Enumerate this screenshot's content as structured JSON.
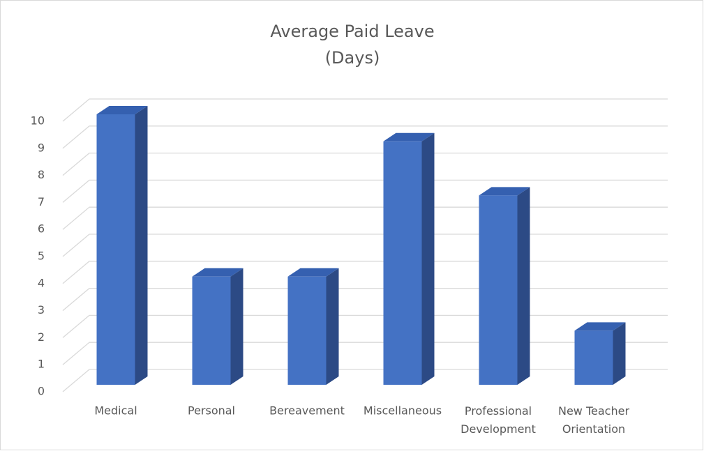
{
  "chart_data": {
    "type": "bar3d",
    "title": "Average Paid Leave",
    "subtitle": "(Days)",
    "categories": [
      "Medical",
      "Personal",
      "Bereavement",
      "Miscellaneous",
      "Professional Development",
      "New Teacher Orientation"
    ],
    "values": [
      10,
      4,
      4,
      9,
      7,
      2
    ],
    "color": "#4472c4",
    "ylim": [
      0,
      10
    ],
    "yticks": [
      0,
      1,
      2,
      3,
      4,
      5,
      6,
      7,
      8,
      9,
      10
    ],
    "grid": true
  }
}
